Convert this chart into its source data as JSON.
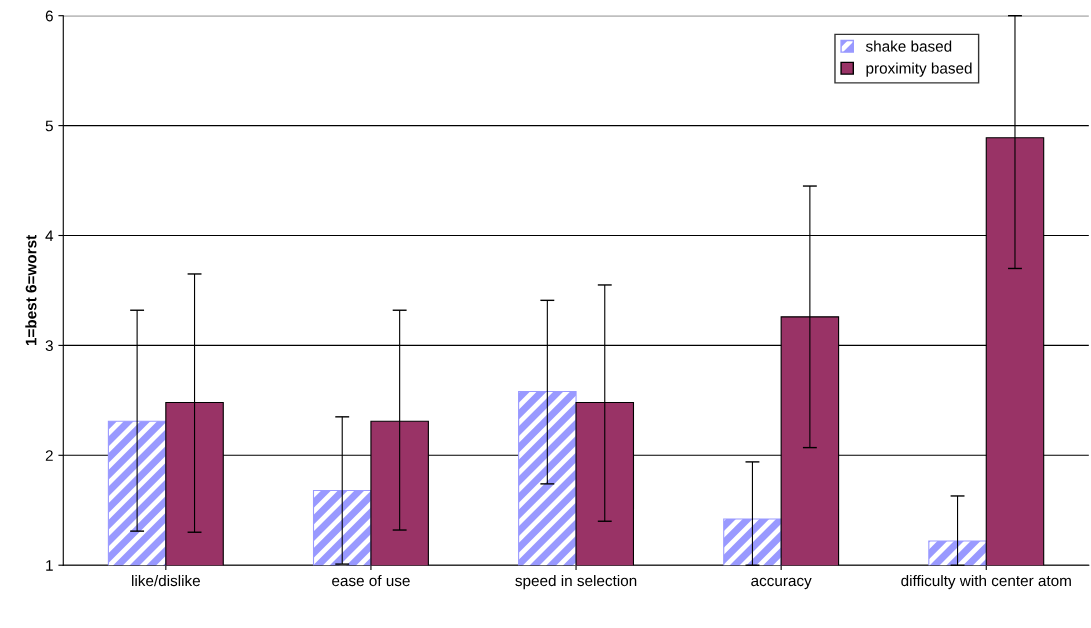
{
  "chart_data": {
    "type": "bar",
    "ylabel": "1=best 6=worst",
    "categories": [
      "like/dislike",
      "ease of use",
      "speed in selection",
      "accuracy",
      "difficulty with center atom"
    ],
    "series": [
      {
        "name": "shake based",
        "color": "#9999ff",
        "values": [
          2.31,
          1.68,
          2.58,
          1.42,
          1.22
        ],
        "errors": [
          [
            1.31,
            3.32
          ],
          [
            1.01,
            2.35
          ],
          [
            1.74,
            3.41
          ],
          [
            1.0,
            1.94
          ],
          [
            1.0,
            1.63
          ]
        ]
      },
      {
        "name": "proximity based",
        "color": "#993366",
        "values": [
          2.48,
          2.31,
          2.48,
          3.26,
          4.89
        ],
        "errors": [
          [
            1.3,
            3.65
          ],
          [
            1.32,
            3.32
          ],
          [
            1.4,
            3.55
          ],
          [
            2.07,
            4.45
          ],
          [
            3.7,
            6.0
          ]
        ]
      }
    ],
    "ylim": [
      1,
      6
    ],
    "yticks": [
      1,
      2,
      3,
      4,
      5,
      6
    ],
    "grid": "y",
    "legend": "top right"
  }
}
